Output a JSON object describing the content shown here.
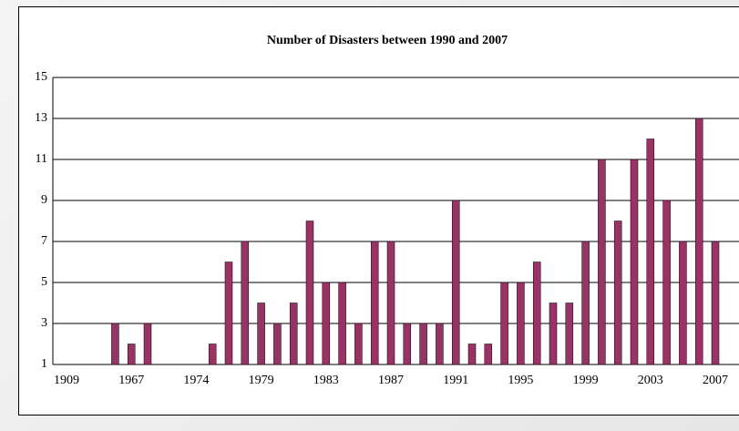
{
  "chart_data": {
    "type": "bar",
    "title": "Number of Disasters between 1990 and 2007",
    "categories": [
      "1909",
      null,
      null,
      null,
      "1967",
      null,
      null,
      null,
      "1974",
      null,
      null,
      null,
      "1979",
      null,
      null,
      null,
      "1983",
      null,
      null,
      null,
      "1987",
      null,
      null,
      null,
      "1991",
      null,
      null,
      null,
      "1995",
      null,
      null,
      null,
      "1999",
      null,
      null,
      null,
      "2003",
      null,
      null,
      null,
      "2007"
    ],
    "values": [
      null,
      null,
      null,
      3,
      2,
      3,
      null,
      null,
      null,
      2,
      6,
      7,
      4,
      3,
      4,
      8,
      5,
      5,
      3,
      7,
      7,
      3,
      3,
      3,
      9,
      2,
      2,
      5,
      5,
      6,
      4,
      4,
      7,
      11,
      8,
      11,
      12,
      9,
      7,
      13,
      7
    ],
    "color": "#993366",
    "ylim": [
      1,
      15
    ],
    "yticks": [
      1,
      3,
      5,
      7,
      9,
      11,
      13,
      15
    ],
    "grid": true
  }
}
